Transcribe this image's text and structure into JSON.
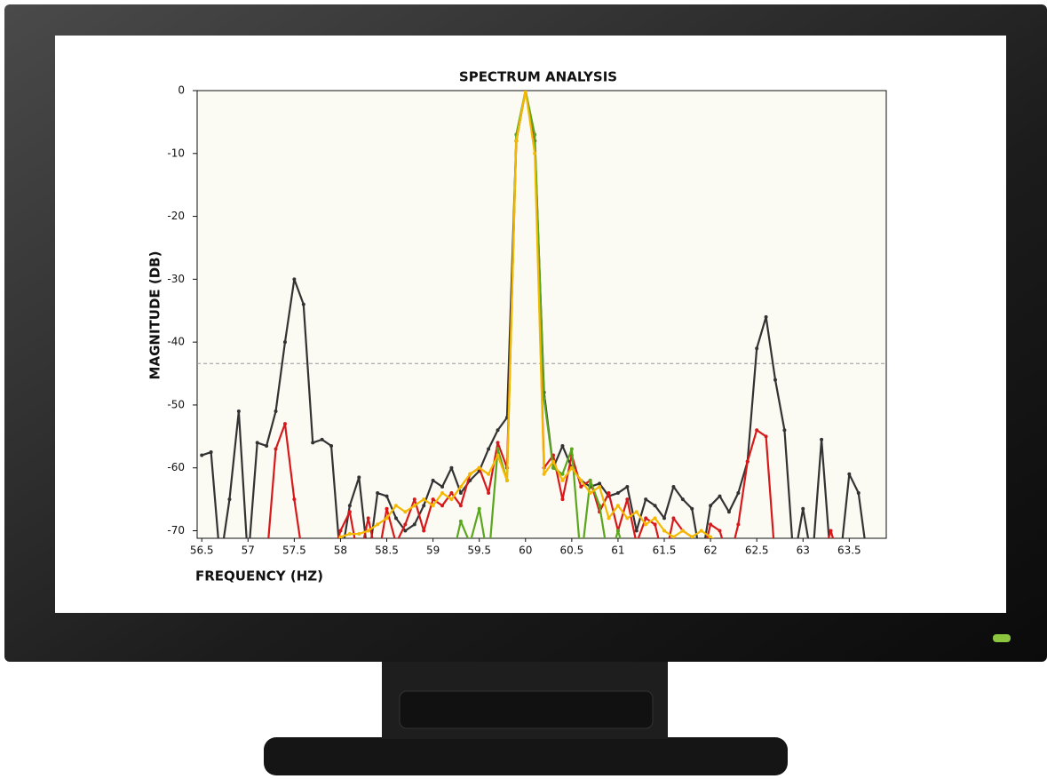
{
  "chart_data": {
    "type": "line",
    "title": "SPECTRUM ANALYSIS",
    "x_label": "FREQUENCY (HZ)",
    "y_label": "MAGNITUDE (DB)",
    "xlim": [
      56.45,
      63.9
    ],
    "ylim": [
      -71.2,
      0
    ],
    "xticks": [
      56.5,
      57,
      57.5,
      58,
      58.5,
      59,
      59.5,
      60,
      60.5,
      61,
      61.5,
      62,
      62.5,
      63,
      63.5
    ],
    "yticks": [
      0,
      -10,
      -20,
      -30,
      -40,
      -50,
      -60,
      -70
    ],
    "threshold": -43.4,
    "x": [
      56.5,
      56.6,
      56.7,
      56.8,
      56.9,
      57.0,
      57.1,
      57.2,
      57.3,
      57.4,
      57.5,
      57.6,
      57.7,
      57.8,
      57.9,
      58.0,
      58.1,
      58.2,
      58.3,
      58.4,
      58.5,
      58.6,
      58.7,
      58.8,
      58.9,
      59.0,
      59.1,
      59.2,
      59.3,
      59.4,
      59.5,
      59.6,
      59.7,
      59.8,
      59.9,
      60.0,
      60.1,
      60.2,
      60.3,
      60.4,
      60.5,
      60.6,
      60.7,
      60.8,
      60.9,
      61.0,
      61.1,
      61.2,
      61.3,
      61.4,
      61.5,
      61.6,
      61.7,
      61.8,
      61.9,
      62.0,
      62.1,
      62.2,
      62.3,
      62.4,
      62.5,
      62.6,
      62.7,
      62.8,
      62.9,
      63.0,
      63.1,
      63.2,
      63.3,
      63.4,
      63.5,
      63.6,
      63.7,
      63.8
    ],
    "series": [
      {
        "color": "#333333",
        "values": [
          -58,
          -57.5,
          -75,
          -65,
          -51,
          -75,
          -56,
          -56.5,
          -51,
          -40,
          -30,
          -34,
          -56,
          -55.5,
          -56.5,
          -75,
          -66,
          -61.5,
          -75,
          -64,
          -64.5,
          -68,
          -70,
          -69,
          -66,
          -62,
          -63,
          -60,
          -64,
          -62,
          -60.5,
          -57,
          -54,
          -52,
          -8,
          0,
          -8,
          -48,
          -60,
          -56.5,
          -60,
          -62,
          -63,
          -62.5,
          -64.5,
          -64,
          -63,
          -70,
          -65,
          -66,
          -68,
          -63,
          -65,
          -66.5,
          -75,
          -66,
          -64.5,
          -67,
          -64,
          -59,
          -41,
          -36,
          -46,
          -54,
          -75,
          -66.5,
          -75,
          -55.5,
          -75,
          -75,
          -61,
          -64,
          -75,
          null
        ]
      },
      {
        "color": "#d7191c",
        "values": [
          null,
          null,
          null,
          null,
          null,
          null,
          null,
          -75,
          -57,
          -53,
          -65,
          -75,
          null,
          null,
          -75,
          -70,
          -67,
          -75,
          -68,
          -75,
          -66.5,
          -72,
          -69,
          -65,
          -70,
          -65,
          -66,
          -64,
          -66,
          -61,
          -60,
          -64,
          -56,
          -60,
          -8,
          0,
          -8,
          -60,
          -58,
          -65,
          -58,
          -63,
          -62,
          -67,
          -64,
          -70,
          -65,
          -72,
          -68,
          -69,
          -75,
          -68,
          -70,
          -71,
          -75,
          -69,
          -70,
          -75,
          -69,
          -59,
          -54,
          -55,
          -75,
          null,
          null,
          null,
          null,
          -75,
          -70,
          -75,
          null,
          null,
          null,
          null
        ]
      },
      {
        "color": "#5aa61e",
        "values": [
          null,
          null,
          null,
          null,
          null,
          null,
          null,
          null,
          null,
          null,
          null,
          null,
          null,
          null,
          null,
          null,
          null,
          null,
          null,
          null,
          null,
          null,
          null,
          null,
          null,
          null,
          null,
          -75,
          -68.5,
          -72,
          -66.5,
          -75,
          -57,
          -62,
          -7,
          0,
          -7,
          -49,
          -60,
          -61,
          -57,
          -75,
          -62,
          -66,
          -75,
          -70,
          -75,
          null,
          null,
          null,
          null,
          null,
          null,
          null,
          null,
          null,
          null,
          null,
          null,
          null,
          null,
          null,
          null,
          null,
          null,
          null,
          null,
          null,
          null,
          null,
          null,
          null,
          null,
          null
        ]
      },
      {
        "color": "#f5b800",
        "values": [
          null,
          null,
          null,
          null,
          null,
          null,
          null,
          null,
          null,
          null,
          null,
          null,
          null,
          null,
          null,
          -71,
          -70.5,
          -70.5,
          -70,
          -69,
          -68,
          -66,
          -67,
          -66,
          -65,
          -66,
          -64,
          -65,
          -63,
          -61,
          -60,
          -61,
          -58,
          -62,
          -8,
          0,
          -10,
          -61,
          -59,
          -62,
          -60,
          -62,
          -64,
          -63,
          -68,
          -66,
          -68,
          -67,
          -69,
          -68,
          -70,
          -71,
          -70,
          -71,
          -70,
          -71,
          -72,
          null,
          null,
          null,
          null,
          null,
          null,
          null,
          null,
          null,
          null,
          null,
          null,
          null,
          null,
          null,
          null,
          null
        ]
      }
    ]
  }
}
